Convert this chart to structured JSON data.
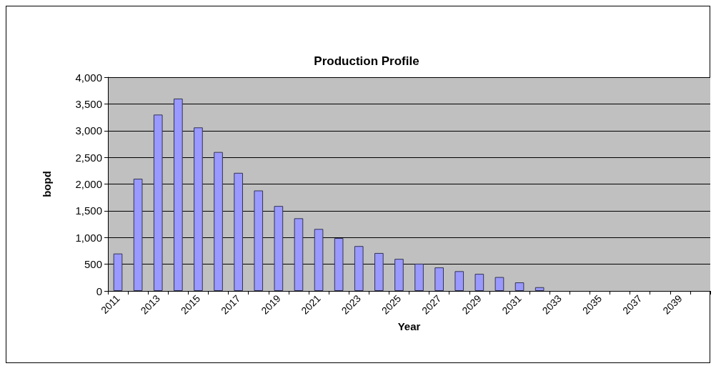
{
  "chart_data": {
    "type": "bar",
    "title": "Production Profile",
    "xlabel": "Year",
    "ylabel": "bopd",
    "categories": [
      "2011",
      null,
      "2013",
      null,
      "2015",
      null,
      "2017",
      null,
      "2019",
      null,
      "2021",
      null,
      "2023",
      null,
      "2025",
      null,
      "2027",
      null,
      "2029",
      null,
      "2031",
      null,
      "2033",
      null,
      "2035",
      null,
      "2037",
      null,
      "2039",
      null
    ],
    "values": [
      700,
      2100,
      3300,
      3600,
      3060,
      2600,
      2210,
      1880,
      1590,
      1360,
      1160,
      990,
      840,
      710,
      600,
      510,
      440,
      370,
      320,
      260,
      160,
      70,
      null,
      null,
      null,
      null,
      null,
      null,
      null,
      null
    ],
    "color": "#9999ff",
    "ylim": [
      0,
      4000
    ],
    "yticks": [
      0,
      {
        "value": 500,
        "label": "500"
      },
      {
        "value": 1000,
        "label": "1,000"
      },
      {
        "value": 1500,
        "label": "1,500"
      },
      {
        "value": 2000,
        "label": "2,000"
      },
      {
        "value": 2500,
        "label": "2,500"
      },
      {
        "value": 3000,
        "label": "3,000"
      },
      {
        "value": 3500,
        "label": "3,500"
      },
      {
        "value": 4000,
        "label": "4,000"
      }
    ],
    "grid": "y"
  }
}
